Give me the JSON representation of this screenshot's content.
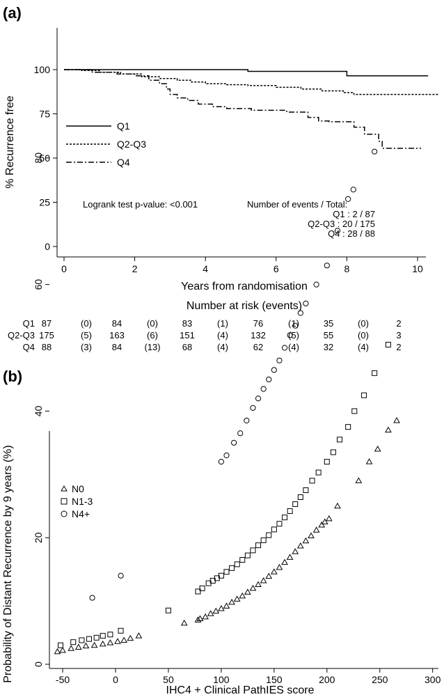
{
  "chart_data": [
    {
      "panel": "(a)",
      "type": "line",
      "step": true,
      "xlabel": "Years from randomisation",
      "ylabel": "% Recurrence free",
      "xlim": [
        -0.3,
        10.6
      ],
      "ylim": [
        0,
        100
      ],
      "xticks": [
        "0",
        "2",
        "4",
        "6",
        "8",
        "10"
      ],
      "yticks": [
        "0",
        "25",
        "50",
        "75",
        "100"
      ],
      "legend_position": "left-middle",
      "series": [
        {
          "name": "Q1",
          "dash": "solid",
          "x": [
            0,
            5.2,
            5.2,
            8.0,
            8.0,
            10.3
          ],
          "y": [
            100,
            100,
            99,
            99,
            96.5,
            96.5
          ]
        },
        {
          "name": "Q2-Q3",
          "dash": "dashed",
          "x": [
            0,
            0.5,
            0.5,
            1.0,
            1.0,
            1.6,
            1.6,
            2.2,
            2.2,
            2.7,
            2.7,
            3.2,
            3.2,
            3.6,
            3.6,
            4.0,
            4.0,
            4.6,
            4.6,
            5.2,
            5.2,
            6.0,
            6.0,
            6.7,
            6.7,
            7.3,
            7.3,
            7.9,
            7.9,
            8.2,
            8.2,
            10.6
          ],
          "y": [
            100,
            100,
            99.5,
            99.5,
            98.5,
            98.5,
            97.5,
            97.5,
            96,
            96,
            95,
            95,
            94,
            94,
            93,
            93,
            92,
            92,
            91.5,
            91.5,
            91,
            91,
            90,
            90,
            89,
            89,
            88,
            88,
            87,
            87,
            86,
            86
          ]
        },
        {
          "name": "Q4",
          "dash": "dashdot",
          "x": [
            0,
            0.8,
            0.8,
            1.5,
            1.5,
            2.0,
            2.0,
            2.4,
            2.4,
            2.7,
            2.7,
            2.9,
            2.9,
            3.0,
            3.0,
            3.2,
            3.2,
            3.5,
            3.5,
            3.8,
            3.8,
            4.2,
            4.2,
            4.6,
            4.6,
            5.3,
            5.3,
            6.3,
            6.3,
            6.9,
            6.9,
            7.2,
            7.2,
            7.5,
            7.5,
            8.2,
            8.2,
            8.5,
            8.5,
            8.9,
            8.9,
            9.0,
            9.0,
            10.1
          ],
          "y": [
            100,
            100,
            98.5,
            98.5,
            97.5,
            97.5,
            96.5,
            96.5,
            94,
            94,
            92,
            92,
            89,
            89,
            86,
            86,
            84,
            84,
            82.5,
            82.5,
            80.5,
            80.5,
            79,
            79,
            78,
            78,
            77,
            77,
            76,
            76,
            73,
            73,
            71,
            71,
            70.5,
            70.5,
            67.5,
            67.5,
            63.5,
            63.5,
            59.5,
            59.5,
            55.5,
            55.5
          ]
        }
      ],
      "annotations": {
        "logrank": "Logrank test p-value: <0.001",
        "events_header": "Number of events / Total:",
        "events_lines": [
          "Q1 : 2 / 87",
          "Q2-Q3 : 20 / 175",
          "Q4 : 28 / 88"
        ]
      },
      "risk_table": {
        "title": "Number at risk (events)",
        "rows": [
          {
            "label": "Q1",
            "cells": [
              "87",
              "(0)",
              "84",
              "(0)",
              "83",
              "(1)",
              "76",
              "(1)",
              "35",
              "(0)",
              "2"
            ]
          },
          {
            "label": "Q2-Q3",
            "cells": [
              "175",
              "(5)",
              "163",
              "(6)",
              "151",
              "(4)",
              "132",
              "(5)",
              "55",
              "(0)",
              "3"
            ]
          },
          {
            "label": "Q4",
            "cells": [
              "88",
              "(3)",
              "84",
              "(13)",
              "68",
              "(4)",
              "62",
              "(4)",
              "32",
              "(4)",
              "2"
            ]
          }
        ]
      }
    },
    {
      "panel": "(b)",
      "type": "scatter",
      "xlabel": "IHC4 + Clinical PathIES score",
      "ylabel": "Probability of Distant Recurrence by 9 years (%)",
      "xlim": [
        -60,
        305
      ],
      "ylim": [
        -2,
        86
      ],
      "xticks": [
        "-50",
        "0",
        "50",
        "100",
        "150",
        "200",
        "250",
        "300"
      ],
      "yticks": [
        "0",
        "20",
        "40",
        "60",
        "80"
      ],
      "legend_position": "top-left",
      "series": [
        {
          "name": "N0",
          "marker": "triangle",
          "x": [
            -55,
            -50,
            -42,
            -35,
            -28,
            -20,
            -12,
            -5,
            2,
            8,
            14,
            22,
            65,
            78,
            80,
            85,
            90,
            95,
            100,
            105,
            110,
            115,
            120,
            125,
            130,
            135,
            140,
            145,
            150,
            155,
            160,
            165,
            170,
            175,
            180,
            185,
            190,
            195,
            198,
            202,
            210,
            230,
            240,
            248,
            258,
            266
          ],
          "y": [
            2,
            2.2,
            2.5,
            2.7,
            2.9,
            3,
            3.2,
            3.4,
            3.6,
            3.8,
            4.1,
            4.5,
            6.5,
            7,
            7.2,
            7.5,
            8,
            8.4,
            8.8,
            9.2,
            9.8,
            10.3,
            10.8,
            11.4,
            12,
            12.6,
            13.2,
            13.9,
            14.6,
            15.3,
            16.1,
            16.9,
            17.8,
            18.7,
            19.5,
            20.3,
            21.2,
            22,
            22.5,
            23,
            25,
            29,
            32,
            34,
            37,
            38.5
          ]
        },
        {
          "name": "N1-3",
          "marker": "square",
          "x": [
            -52,
            -40,
            -32,
            -25,
            -18,
            -12,
            -5,
            5,
            50,
            78,
            82,
            88,
            92,
            96,
            100,
            105,
            110,
            115,
            120,
            125,
            130,
            135,
            140,
            145,
            150,
            155,
            160,
            165,
            170,
            175,
            180,
            186,
            192,
            200,
            206,
            212,
            220,
            226,
            235,
            245,
            258
          ],
          "y": [
            3,
            3.5,
            3.8,
            4,
            4.2,
            4.5,
            4.7,
            5.3,
            8.5,
            11.5,
            12,
            12.8,
            13.2,
            13.6,
            14,
            14.6,
            15.2,
            15.8,
            16.5,
            17.2,
            18,
            18.8,
            19.6,
            20.4,
            21.3,
            22.2,
            23.2,
            24.2,
            25.3,
            26.4,
            27.5,
            29,
            30.3,
            32,
            33.5,
            35.5,
            37.5,
            40,
            42.5,
            46,
            50.5
          ]
        },
        {
          "name": "N4+",
          "marker": "circle",
          "x": [
            -22,
            5,
            100,
            105,
            112,
            118,
            124,
            130,
            135,
            140,
            145,
            150,
            155,
            160,
            165,
            170,
            175,
            180,
            190,
            200,
            210,
            220,
            225,
            245
          ],
          "y": [
            10.5,
            14,
            32,
            33,
            35,
            36.5,
            38.5,
            40.5,
            42,
            43.5,
            45,
            46.5,
            48,
            50,
            52,
            53.5,
            55.5,
            57,
            60,
            63,
            68.5,
            73.5,
            75,
            81
          ]
        }
      ]
    }
  ]
}
